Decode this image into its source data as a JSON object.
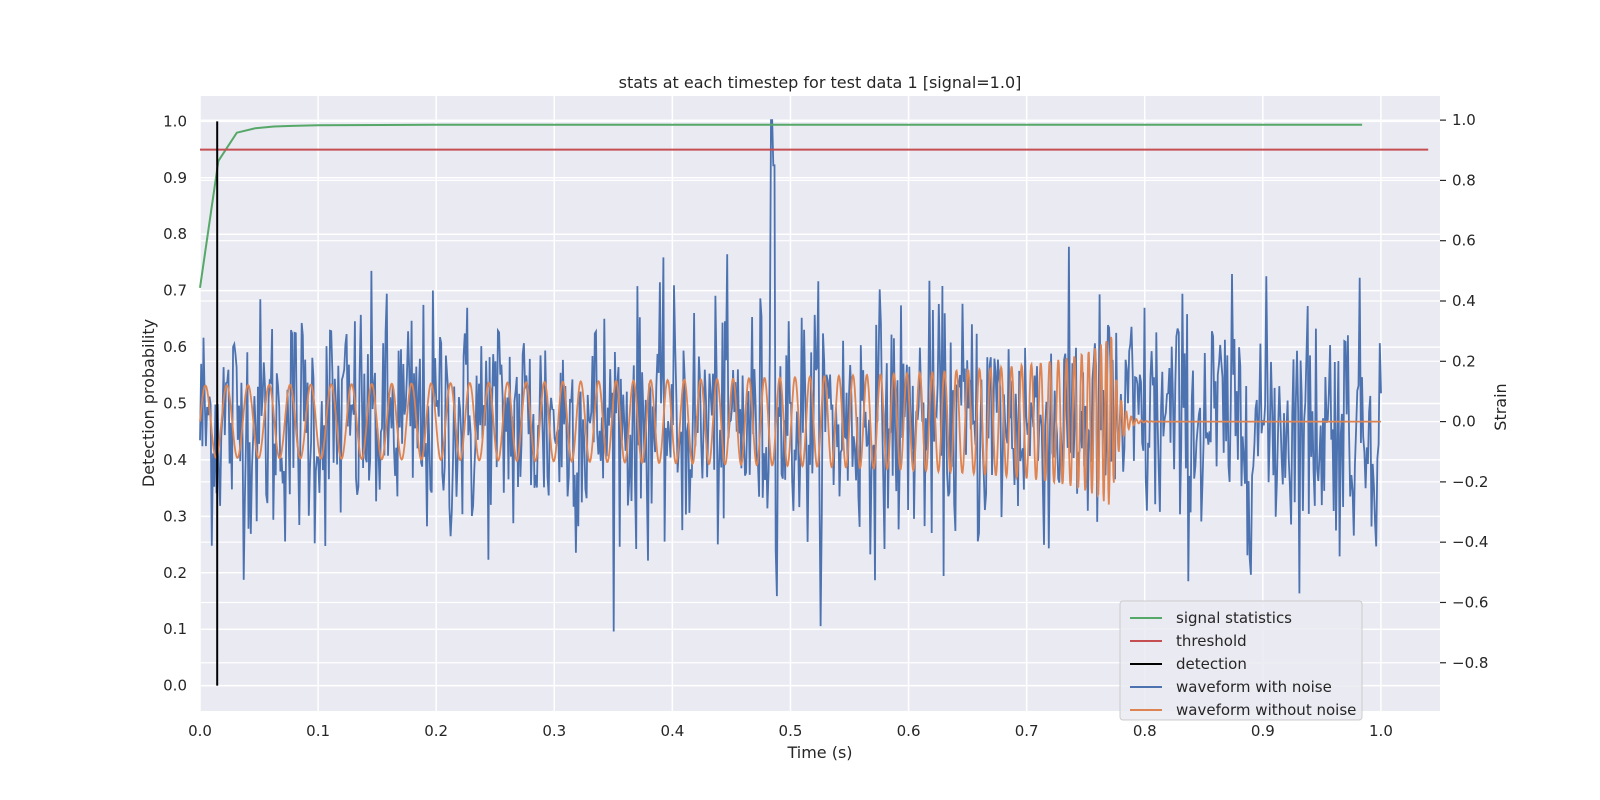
{
  "chart_data": {
    "type": "line",
    "title": "stats at each timestep for test data 1 [signal=1.0]",
    "xlabel": "Time (s)",
    "ylabel": "Detection probability",
    "y2label": "Strain",
    "xlim": [
      0.0,
      1.05
    ],
    "ylim": [
      -0.045,
      1.045
    ],
    "y2lim": [
      -0.96,
      1.08
    ],
    "xticks": [
      "0.0",
      "0.1",
      "0.2",
      "0.3",
      "0.4",
      "0.5",
      "0.6",
      "0.7",
      "0.8",
      "0.9",
      "1.0"
    ],
    "yticks": [
      "0.0",
      "0.1",
      "0.2",
      "0.3",
      "0.4",
      "0.5",
      "0.6",
      "0.7",
      "0.8",
      "0.9",
      "1.0"
    ],
    "y2ticks": [
      "−0.8",
      "−0.6",
      "−0.4",
      "−0.2",
      "0.0",
      "0.2",
      "0.4",
      "0.6",
      "0.8",
      "1.0"
    ],
    "grid": true,
    "legend_position": "lower-right",
    "series": [
      {
        "name": "signal statistics",
        "color": "#55a868",
        "axis": "left",
        "x": [
          0.0,
          0.0156,
          0.0312,
          0.0469,
          0.0625,
          0.0781,
          0.1,
          0.2,
          0.5,
          0.8,
          0.984
        ],
        "y": [
          0.705,
          0.93,
          0.98,
          0.988,
          0.991,
          0.992,
          0.993,
          0.994,
          0.994,
          0.994,
          0.994
        ]
      },
      {
        "name": "threshold",
        "color": "#c44e52",
        "axis": "left",
        "x": [
          0.0,
          1.04
        ],
        "y": [
          0.95,
          0.95
        ]
      },
      {
        "name": "detection",
        "color": "#000000",
        "axis": "left",
        "x": [
          0.0146,
          0.0146
        ],
        "y": [
          0.0,
          1.0
        ]
      },
      {
        "name": "waveform with noise",
        "color": "#4c72b0",
        "axis": "right",
        "description": "noisy strain, amplitude about ±0.4 (peaks near 1.0 at t≈0.484), sampled 0–1.0 s"
      },
      {
        "name": "waveform without noise",
        "color": "#dd8452",
        "axis": "right",
        "description": "chirp, amplitude ~0.12 growing to ~0.4 near merger at t≈0.77, then ringdown to 0"
      }
    ],
    "legend": [
      "signal statistics",
      "threshold",
      "detection",
      "waveform with noise",
      "waveform without noise"
    ]
  }
}
